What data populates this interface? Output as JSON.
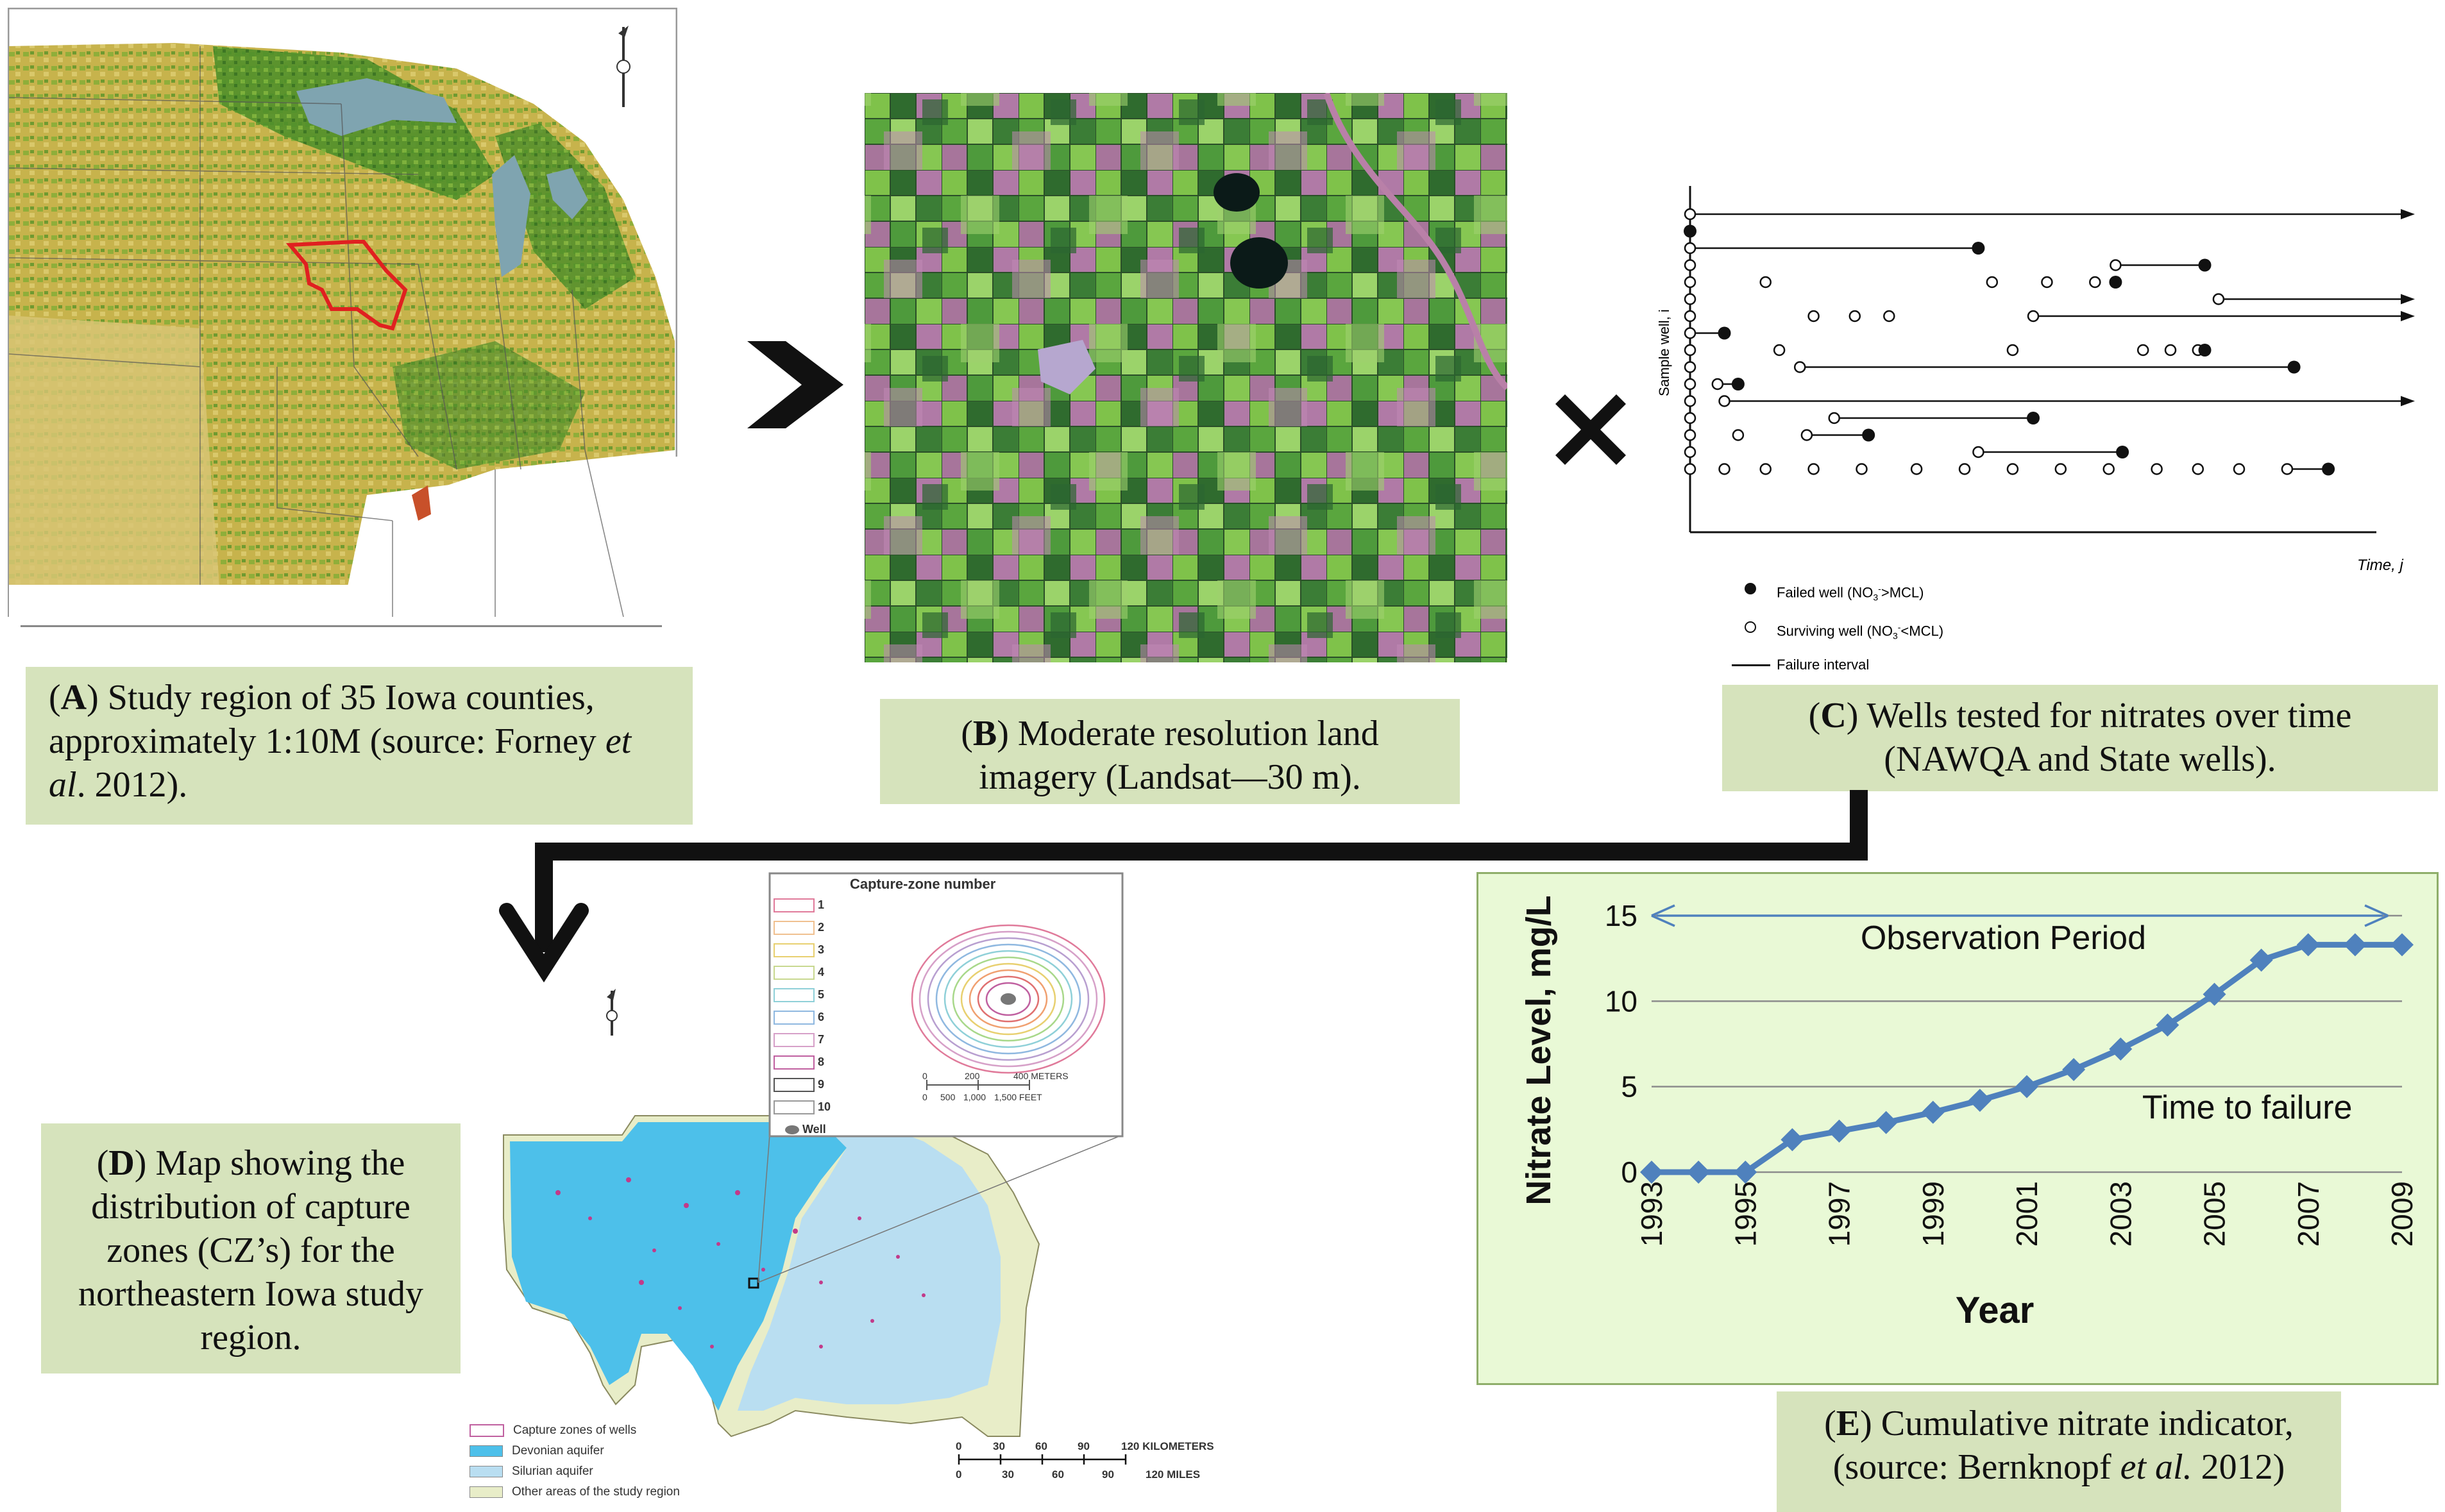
{
  "captions": {
    "a": {
      "letter": "A",
      "pre": ") Study region of 35 Iowa counties, approximately 1:10M (source: Forney ",
      "em": "et al",
      "post": ". 2012)."
    },
    "b": {
      "letter": "B",
      "text": ") Moderate resolution land imagery (Landsat—30 m)."
    },
    "c": {
      "letter": "C",
      "text": ") Wells tested for nitrates over time (NAWQA and State wells)."
    },
    "d": {
      "letter": "D",
      "text": ") Map showing the distribution of capture zones (CZ’s) for the northeastern Iowa study region."
    },
    "e": {
      "letter": "E",
      "pre": ") Cumulative nitrate indicator, (source: Bernknopf ",
      "em": "et al.",
      "post": " 2012)"
    }
  },
  "panel_c": {
    "y_axis_label": "Sample well, i",
    "x_axis_label": "Time, j",
    "legend": [
      {
        "symbol": "filled-circle",
        "label_pre": "Failed well (NO",
        "label_sub": "3",
        "label_sup": "-",
        "label_post": ">MCL)"
      },
      {
        "symbol": "open-circle",
        "label_pre": "Surviving well (NO",
        "label_sub": "3",
        "label_sup": "-",
        "label_post": "<MCL)"
      },
      {
        "symbol": "line",
        "label": "Failure interval"
      }
    ]
  },
  "panel_d": {
    "inset_title": "Capture-zone number",
    "capture_zones": [
      "1",
      "2",
      "3",
      "4",
      "5",
      "6",
      "7",
      "8",
      "9",
      "10"
    ],
    "well_label": "Well",
    "inset_scale_meters": [
      "0",
      "200",
      "400 METERS"
    ],
    "inset_scale_feet": [
      "0",
      "500",
      "1,000",
      "1,500 FEET"
    ],
    "legend": [
      {
        "label": "Capture zones of wells",
        "color": "#ffffff"
      },
      {
        "label": "Devonian aquifer",
        "color": "#4dc0ea"
      },
      {
        "label": "Silurian aquifer",
        "color": "#b9def1"
      },
      {
        "label": "Other areas of the study region",
        "color": "#e8edc8"
      }
    ],
    "scale_km": [
      "0",
      "30",
      "60",
      "90",
      "120 KILOMETERS"
    ],
    "scale_mi": [
      "0",
      "30",
      "60",
      "90",
      "120 MILES"
    ]
  },
  "chart_data": {
    "type": "line",
    "title": "",
    "xlabel": "Year",
    "ylabel": "Nitrate Level, mg/L",
    "ylim": [
      0,
      15
    ],
    "yticks": [
      "0",
      "5",
      "10",
      "15"
    ],
    "xticks": [
      "1993",
      "1995",
      "1997",
      "1999",
      "2001",
      "2003",
      "2005",
      "2007",
      "2009"
    ],
    "x": [
      1993,
      1994,
      1995,
      1996,
      1997,
      1998,
      1999,
      2000,
      2001,
      2002,
      2003,
      2004,
      2005,
      2006,
      2007,
      2008,
      2009
    ],
    "series": [
      {
        "values": [
          0,
          0,
          0,
          1.9,
          2.4,
          2.9,
          3.5,
          4.2,
          5.0,
          6.0,
          7.2,
          8.6,
          10.4,
          12.4,
          13.3,
          13.3,
          13.3
        ]
      }
    ],
    "annotations": {
      "arrow_label": "Observation Period",
      "failure_label": "Time to failure"
    },
    "grid": true,
    "line_color": "#4f81bd",
    "background_color": "#e9f9d6"
  }
}
